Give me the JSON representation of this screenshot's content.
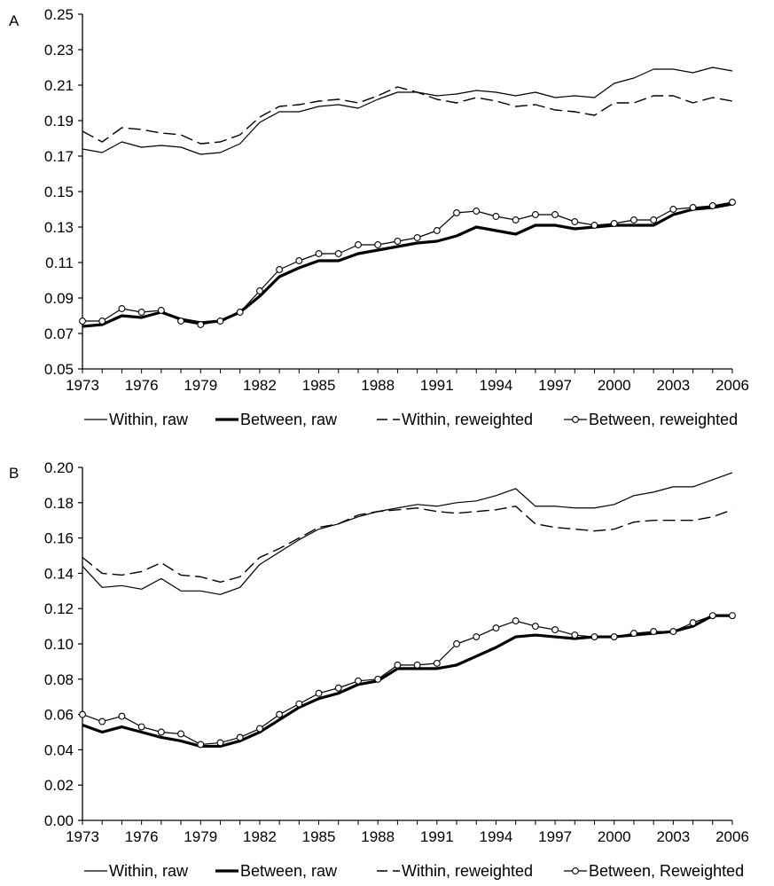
{
  "chart_data": [
    {
      "type": "line",
      "panel_label": "A",
      "x": [
        1973,
        1974,
        1975,
        1976,
        1977,
        1978,
        1979,
        1980,
        1981,
        1982,
        1983,
        1984,
        1985,
        1986,
        1987,
        1988,
        1989,
        1990,
        1991,
        1992,
        1993,
        1994,
        1995,
        1996,
        1997,
        1998,
        1999,
        2000,
        2001,
        2002,
        2003,
        2004,
        2005,
        2006
      ],
      "xticks": [
        "1973",
        "1976",
        "1979",
        "1982",
        "1985",
        "1988",
        "1991",
        "1994",
        "1997",
        "2000",
        "2003",
        "2006"
      ],
      "xlim": [
        1973,
        2006
      ],
      "ylim": [
        0.05,
        0.25
      ],
      "yticks": [
        "0.05",
        "0.07",
        "0.09",
        "0.11",
        "0.13",
        "0.15",
        "0.17",
        "0.19",
        "0.21",
        "0.23",
        "0.25"
      ],
      "series": [
        {
          "name": "Within, raw",
          "style": "thin",
          "values": [
            0.174,
            0.172,
            0.178,
            0.175,
            0.176,
            0.175,
            0.171,
            0.172,
            0.177,
            0.189,
            0.195,
            0.195,
            0.198,
            0.199,
            0.197,
            0.202,
            0.206,
            0.206,
            0.204,
            0.205,
            0.207,
            0.206,
            0.204,
            0.206,
            0.203,
            0.204,
            0.203,
            0.211,
            0.214,
            0.219,
            0.219,
            0.217,
            0.22,
            0.218
          ]
        },
        {
          "name": "Between, raw",
          "style": "thick",
          "values": [
            0.074,
            0.075,
            0.08,
            0.079,
            0.082,
            0.078,
            0.076,
            0.077,
            0.082,
            0.091,
            0.102,
            0.107,
            0.111,
            0.111,
            0.115,
            0.117,
            0.119,
            0.121,
            0.122,
            0.125,
            0.13,
            0.128,
            0.126,
            0.131,
            0.131,
            0.129,
            0.13,
            0.131,
            0.131,
            0.131,
            0.137,
            0.14,
            0.141,
            0.143
          ]
        },
        {
          "name": "Within, reweighted",
          "style": "dashed",
          "values": [
            0.184,
            0.178,
            0.186,
            0.185,
            0.183,
            0.182,
            0.177,
            0.178,
            0.182,
            0.192,
            0.198,
            0.199,
            0.201,
            0.202,
            0.2,
            0.204,
            0.209,
            0.206,
            0.202,
            0.2,
            0.203,
            0.201,
            0.198,
            0.199,
            0.196,
            0.195,
            0.193,
            0.2,
            0.2,
            0.204,
            0.204,
            0.2,
            0.203,
            0.201
          ]
        },
        {
          "name": "Between, reweighted",
          "style": "markers",
          "values": [
            0.077,
            0.077,
            0.084,
            0.082,
            0.083,
            0.077,
            0.075,
            0.077,
            0.082,
            0.094,
            0.106,
            0.111,
            0.115,
            0.115,
            0.12,
            0.12,
            0.122,
            0.124,
            0.128,
            0.138,
            0.139,
            0.136,
            0.134,
            0.137,
            0.137,
            0.133,
            0.131,
            0.132,
            0.134,
            0.134,
            0.14,
            0.141,
            0.142,
            0.144
          ]
        }
      ]
    },
    {
      "type": "line",
      "panel_label": "B",
      "x": [
        1973,
        1974,
        1975,
        1976,
        1977,
        1978,
        1979,
        1980,
        1981,
        1982,
        1983,
        1984,
        1985,
        1986,
        1987,
        1988,
        1989,
        1990,
        1991,
        1992,
        1993,
        1994,
        1995,
        1996,
        1997,
        1998,
        1999,
        2000,
        2001,
        2002,
        2003,
        2004,
        2005,
        2006
      ],
      "xticks": [
        "1973",
        "1976",
        "1979",
        "1982",
        "1985",
        "1988",
        "1991",
        "1994",
        "1997",
        "2000",
        "2003",
        "2006"
      ],
      "xlim": [
        1973,
        2006
      ],
      "ylim": [
        0.0,
        0.2
      ],
      "yticks": [
        "0.00",
        "0.02",
        "0.04",
        "0.06",
        "0.08",
        "0.10",
        "0.12",
        "0.14",
        "0.16",
        "0.18",
        "0.20"
      ],
      "series": [
        {
          "name": "Within, raw",
          "style": "thin",
          "values": [
            0.144,
            0.132,
            0.133,
            0.131,
            0.137,
            0.13,
            0.13,
            0.128,
            0.132,
            0.145,
            0.152,
            0.159,
            0.165,
            0.168,
            0.172,
            0.175,
            0.177,
            0.179,
            0.178,
            0.18,
            0.181,
            0.184,
            0.188,
            0.178,
            0.178,
            0.177,
            0.177,
            0.179,
            0.184,
            0.186,
            0.189,
            0.189,
            0.193,
            0.197
          ]
        },
        {
          "name": "Between, raw",
          "style": "thick",
          "values": [
            0.054,
            0.05,
            0.053,
            0.05,
            0.047,
            0.045,
            0.042,
            0.042,
            0.045,
            0.05,
            0.057,
            0.064,
            0.069,
            0.072,
            0.077,
            0.079,
            0.086,
            0.086,
            0.086,
            0.088,
            0.093,
            0.098,
            0.104,
            0.105,
            0.104,
            0.103,
            0.104,
            0.104,
            0.105,
            0.106,
            0.107,
            0.11,
            0.116,
            0.116
          ]
        },
        {
          "name": "Within, reweighted",
          "style": "dashed",
          "values": [
            0.149,
            0.14,
            0.139,
            0.141,
            0.146,
            0.139,
            0.138,
            0.135,
            0.138,
            0.149,
            0.154,
            0.16,
            0.166,
            0.168,
            0.173,
            0.175,
            0.176,
            0.177,
            0.175,
            0.174,
            0.175,
            0.176,
            0.178,
            0.168,
            0.166,
            0.165,
            0.164,
            0.165,
            0.169,
            0.17,
            0.17,
            0.17,
            0.172,
            0.176
          ]
        },
        {
          "name": "Between, Reweighted",
          "style": "markers",
          "values": [
            0.06,
            0.056,
            0.059,
            0.053,
            0.05,
            0.049,
            0.043,
            0.044,
            0.047,
            0.052,
            0.06,
            0.066,
            0.072,
            0.075,
            0.079,
            0.08,
            0.088,
            0.088,
            0.089,
            0.1,
            0.104,
            0.109,
            0.113,
            0.11,
            0.108,
            0.105,
            0.104,
            0.104,
            0.106,
            0.107,
            0.107,
            0.112,
            0.116,
            0.116
          ]
        }
      ]
    }
  ]
}
